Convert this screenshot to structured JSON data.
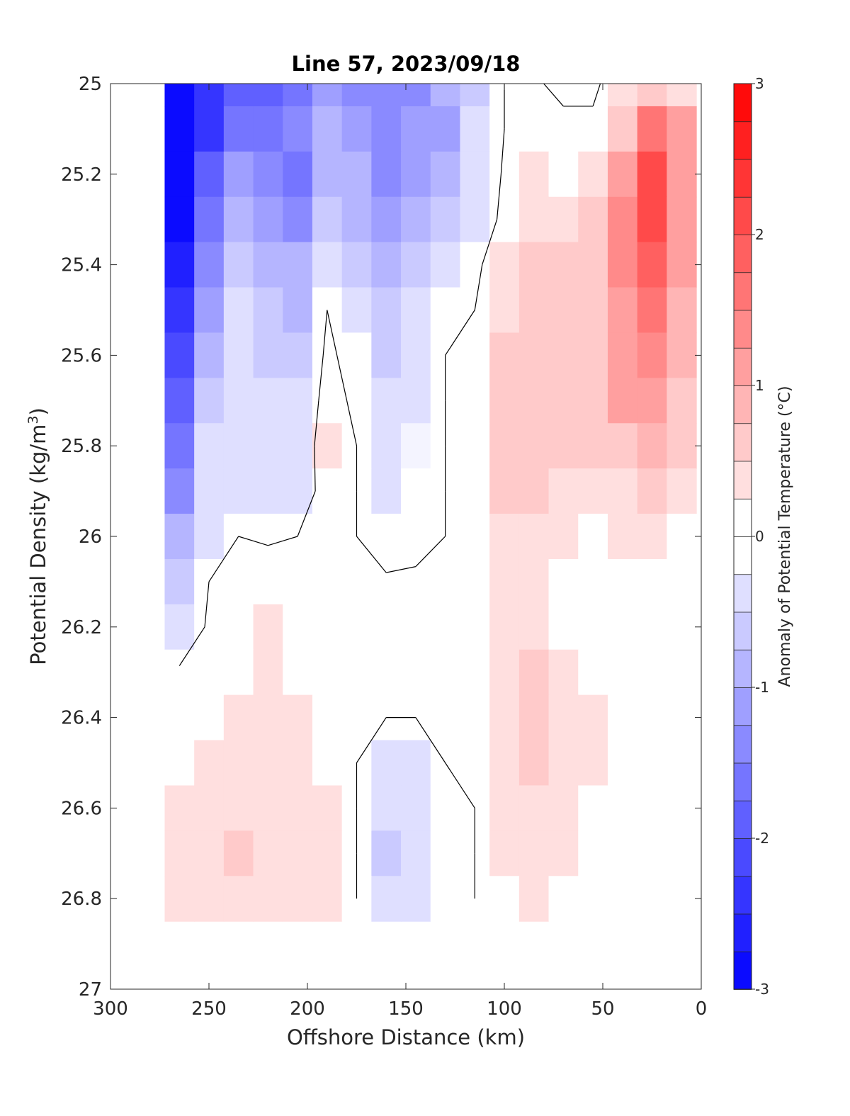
{
  "chart_data": {
    "type": "heatmap",
    "title": "Line 57, 2023/09/18",
    "xlabel": "Offshore Distance (km)",
    "ylabel_main": "Potential Density (kg/m",
    "ylabel_sup": "3",
    "ylabel_close": ")",
    "xlim": [
      300,
      0
    ],
    "ylim": [
      25,
      27
    ],
    "x_reversed": true,
    "y_reversed": true,
    "x_ticks": [
      300,
      250,
      200,
      150,
      100,
      50,
      0
    ],
    "x_tick_labels": [
      "300",
      "250",
      "200",
      "150",
      "100",
      "50",
      "0"
    ],
    "y_ticks": [
      25,
      25.2,
      25.4,
      25.6,
      25.8,
      26,
      26.2,
      26.4,
      26.6,
      26.8,
      27
    ],
    "y_tick_labels": [
      "25",
      "25.2",
      "25.4",
      "25.6",
      "25.8",
      "26",
      "26.2",
      "26.4",
      "26.6",
      "26.8",
      "27"
    ],
    "grid": false,
    "colorbar": {
      "label": "Anomaly of Potential Temperature (°C)",
      "range": [
        -3,
        3
      ],
      "step": 0.25,
      "ticks": [
        3,
        2,
        1,
        0,
        -1,
        -2,
        -3
      ],
      "tick_labels": [
        "3",
        "2",
        "1",
        "0",
        "-1",
        "-2",
        "-3"
      ]
    },
    "x": [
      265,
      250,
      235,
      220,
      205,
      190,
      175,
      160,
      145,
      130,
      115,
      100,
      85,
      70,
      55,
      40,
      25,
      10
    ],
    "y": [
      25.0,
      25.1,
      25.2,
      25.3,
      25.4,
      25.5,
      25.6,
      25.7,
      25.8,
      25.9,
      26.0,
      26.1,
      26.2,
      26.3,
      26.4,
      26.5,
      26.6,
      26.7,
      26.8
    ],
    "z": [
      [
        -3.0,
        -2.5,
        -2.0,
        -1.8,
        -1.6,
        -1.2,
        -1.3,
        -1.4,
        -1.3,
        -1.0,
        -0.6,
        0.0,
        0.1,
        -0.2,
        -0.1,
        0.3,
        0.5,
        0.4
      ],
      [
        -3.0,
        -2.3,
        -1.6,
        -1.7,
        -1.5,
        -1.0,
        -1.2,
        -1.4,
        -1.2,
        -1.1,
        -0.5,
        0.0,
        0.1,
        0.2,
        0.1,
        0.7,
        1.5,
        1.2
      ],
      [
        -2.9,
        -2.0,
        -1.2,
        -1.4,
        -1.6,
        -0.8,
        -1.0,
        -1.3,
        -1.1,
        -1.0,
        -0.4,
        0.05,
        0.3,
        0.1,
        0.4,
        1.0,
        2.0,
        1.2
      ],
      [
        -2.8,
        -1.7,
        -0.9,
        -1.1,
        -1.3,
        -0.6,
        -0.8,
        -1.1,
        -0.9,
        -0.7,
        -0.3,
        0.1,
        0.45,
        0.3,
        0.5,
        1.3,
        2.1,
        1.1
      ],
      [
        -2.6,
        -1.4,
        -0.7,
        -0.8,
        -1.0,
        -0.3,
        -0.6,
        -0.9,
        -0.6,
        -0.3,
        -0.1,
        0.3,
        0.6,
        0.6,
        0.7,
        1.3,
        1.9,
        1.0
      ],
      [
        -2.4,
        -1.1,
        -0.5,
        -0.6,
        -0.8,
        0.0,
        -0.4,
        -0.7,
        -0.5,
        -0.2,
        0.0,
        0.4,
        0.7,
        0.6,
        0.7,
        1.2,
        1.7,
        0.9
      ],
      [
        -2.1,
        -0.9,
        -0.45,
        -0.55,
        -0.65,
        0.1,
        -0.2,
        -0.55,
        -0.4,
        0.0,
        0.05,
        0.5,
        0.7,
        0.6,
        0.7,
        1.1,
        1.4,
        0.8
      ],
      [
        -1.8,
        -0.7,
        -0.35,
        -0.4,
        -0.5,
        0.2,
        -0.1,
        -0.45,
        -0.3,
        0.0,
        0.05,
        0.55,
        0.7,
        0.6,
        0.65,
        1.0,
        1.2,
        0.7
      ],
      [
        -1.6,
        -0.5,
        -0.35,
        -0.4,
        -0.4,
        0.3,
        0.0,
        -0.35,
        -0.25,
        0.0,
        0.05,
        0.55,
        0.6,
        0.55,
        0.5,
        0.7,
        0.8,
        0.5
      ],
      [
        -1.3,
        -0.4,
        -0.3,
        -0.35,
        -0.3,
        0.2,
        0.0,
        -0.3,
        -0.2,
        0.0,
        0.05,
        0.5,
        0.5,
        0.4,
        0.35,
        0.45,
        0.5,
        0.3
      ],
      [
        -1.0,
        -0.3,
        0.0,
        -0.05,
        0.0,
        0.1,
        0.0,
        -0.2,
        -0.1,
        0.0,
        0.05,
        0.4,
        0.35,
        0.3,
        0.2,
        0.3,
        0.3,
        0.1
      ],
      [
        -0.6,
        0.0,
        0.1,
        0.2,
        0.1,
        0.1,
        0.0,
        0.05,
        0.05,
        0.0,
        0.05,
        0.35,
        0.3,
        0.1,
        0.0,
        0.0,
        0.0,
        0.0
      ],
      [
        -0.3,
        0.05,
        0.2,
        0.3,
        0.2,
        0.1,
        0.0,
        0.05,
        0.05,
        0.0,
        0.05,
        0.35,
        0.3,
        0.2,
        0.0,
        0.0,
        0.0,
        0.0
      ],
      [
        0.05,
        0.05,
        0.15,
        0.3,
        0.15,
        0.1,
        0.0,
        0.05,
        0.05,
        0.0,
        0.05,
        0.35,
        0.55,
        0.35,
        0.2,
        0.0,
        0.0,
        0.0
      ],
      [
        0.05,
        0.05,
        0.3,
        0.35,
        0.3,
        0.1,
        0.0,
        0.0,
        0.0,
        0.0,
        0.1,
        0.4,
        0.65,
        0.45,
        0.3,
        0.0,
        0.0,
        0.0
      ],
      [
        0.05,
        0.3,
        0.35,
        0.35,
        0.3,
        0.2,
        0.0,
        -0.3,
        -0.3,
        0.0,
        0.1,
        0.4,
        0.6,
        0.4,
        0.25,
        0.0,
        0.0,
        0.0
      ],
      [
        0.3,
        0.35,
        0.35,
        0.35,
        0.3,
        0.3,
        0.0,
        -0.4,
        -0.4,
        -0.1,
        0.0,
        0.35,
        0.4,
        0.3,
        0.1,
        0.0,
        0.0,
        0.0
      ],
      [
        0.4,
        0.35,
        0.55,
        0.4,
        0.35,
        0.3,
        0.0,
        -0.7,
        -0.4,
        -0.1,
        0.0,
        0.3,
        0.3,
        0.25,
        0.0,
        0.0,
        0.0,
        0.0
      ],
      [
        0.3,
        0.3,
        0.3,
        0.3,
        0.3,
        0.3,
        0.0,
        -0.4,
        -0.4,
        -0.1,
        0.0,
        0.0,
        0.3,
        0.2,
        0.0,
        0.0,
        0.0,
        0.0
      ]
    ]
  }
}
